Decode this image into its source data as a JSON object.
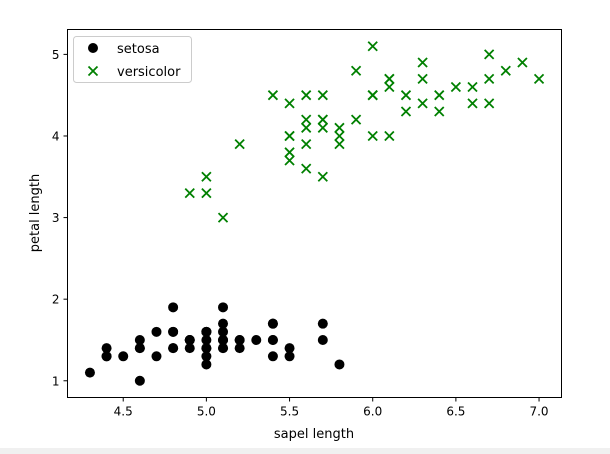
{
  "chart_data": {
    "type": "scatter",
    "xlabel": "sapel length",
    "ylabel": "petal length",
    "xlim": [
      4.165,
      7.135
    ],
    "ylim": [
      0.795,
      5.305
    ],
    "xticks": [
      4.5,
      5.0,
      5.5,
      6.0,
      6.5,
      7.0
    ],
    "xtick_labels": [
      "4.5",
      "5.0",
      "5.5",
      "6.0",
      "6.5",
      "7.0"
    ],
    "yticks": [
      1,
      2,
      3,
      4,
      5
    ],
    "ytick_labels": [
      "1",
      "2",
      "3",
      "4",
      "5"
    ],
    "grid": false,
    "legend": "top-left",
    "series": [
      {
        "name": "setosa",
        "marker": "circle",
        "color": "#000000",
        "x": [
          5.1,
          4.9,
          4.7,
          4.6,
          5.0,
          5.4,
          4.6,
          5.0,
          4.4,
          4.9,
          5.4,
          4.8,
          4.8,
          4.3,
          5.8,
          5.7,
          5.4,
          5.1,
          5.7,
          5.1,
          5.4,
          5.1,
          4.6,
          5.1,
          4.8,
          5.0,
          5.0,
          5.2,
          5.2,
          4.7,
          4.8,
          5.4,
          5.2,
          5.5,
          4.9,
          5.0,
          5.5,
          4.9,
          4.4,
          5.1,
          5.0,
          4.5,
          4.4,
          5.0,
          5.1,
          4.8,
          5.1,
          4.6,
          5.3,
          5.0
        ],
        "y": [
          1.4,
          1.4,
          1.3,
          1.5,
          1.4,
          1.7,
          1.4,
          1.5,
          1.4,
          1.5,
          1.5,
          1.6,
          1.4,
          1.1,
          1.2,
          1.5,
          1.3,
          1.4,
          1.7,
          1.5,
          1.7,
          1.5,
          1.0,
          1.7,
          1.9,
          1.6,
          1.6,
          1.5,
          1.4,
          1.6,
          1.6,
          1.5,
          1.5,
          1.4,
          1.5,
          1.2,
          1.3,
          1.5,
          1.3,
          1.5,
          1.3,
          1.3,
          1.3,
          1.6,
          1.9,
          1.4,
          1.6,
          1.4,
          1.5,
          1.4
        ]
      },
      {
        "name": "versicolor",
        "marker": "x",
        "color": "#008000",
        "x": [
          7.0,
          6.4,
          6.9,
          5.5,
          6.5,
          5.7,
          6.3,
          4.9,
          6.6,
          5.2,
          5.0,
          5.9,
          6.0,
          6.1,
          5.6,
          6.7,
          5.6,
          5.8,
          6.2,
          5.6,
          5.9,
          6.1,
          6.3,
          6.1,
          6.4,
          6.6,
          6.8,
          6.7,
          6.0,
          5.7,
          5.5,
          5.5,
          5.8,
          6.0,
          5.4,
          6.0,
          6.7,
          6.3,
          5.6,
          5.5,
          5.5,
          6.1,
          5.8,
          5.0,
          5.6,
          5.7,
          5.7,
          6.2,
          5.1,
          5.7
        ],
        "y": [
          4.7,
          4.5,
          4.9,
          4.0,
          4.6,
          4.5,
          4.7,
          3.3,
          4.6,
          3.9,
          3.5,
          4.2,
          4.0,
          4.7,
          3.6,
          4.4,
          4.5,
          4.1,
          4.5,
          3.9,
          4.8,
          4.0,
          4.9,
          4.7,
          4.3,
          4.4,
          4.8,
          5.0,
          4.5,
          3.5,
          3.8,
          3.7,
          3.9,
          5.1,
          4.5,
          4.5,
          4.7,
          4.4,
          4.1,
          4.0,
          4.4,
          4.6,
          4.0,
          3.3,
          4.2,
          4.2,
          4.2,
          4.3,
          3.0,
          4.1
        ]
      }
    ]
  }
}
